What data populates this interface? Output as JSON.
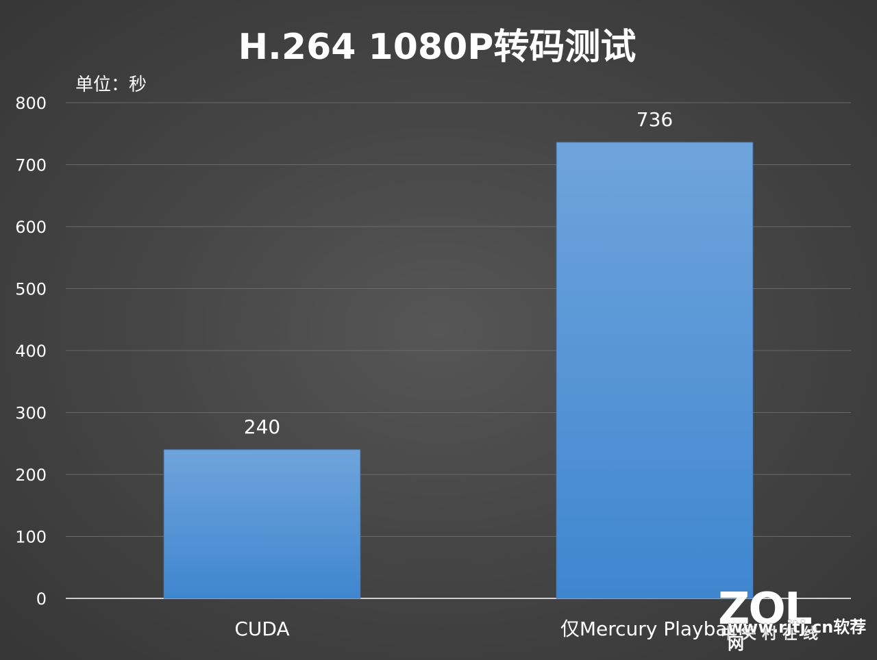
{
  "chart_data": {
    "type": "bar",
    "title": "H.264 1080P转码测试",
    "unit_label": "单位：秒",
    "categories": [
      "CUDA",
      "仅Mercury Playback"
    ],
    "values": [
      240,
      736
    ],
    "ylim": [
      0,
      800
    ],
    "yticks": [
      0,
      100,
      200,
      300,
      400,
      500,
      600,
      700,
      800
    ],
    "grid": true,
    "colors": {
      "bar_top": "#6fa4dc",
      "bar_bottom": "#3f86cf",
      "text": "#ffffff",
      "grid": "#6a6a6a",
      "axis": "#cfcfcf"
    }
  },
  "watermark": {
    "logo": "ZOL",
    "logo_sub": "中关村在线",
    "site": "www.rjtj.cn软荐网"
  }
}
